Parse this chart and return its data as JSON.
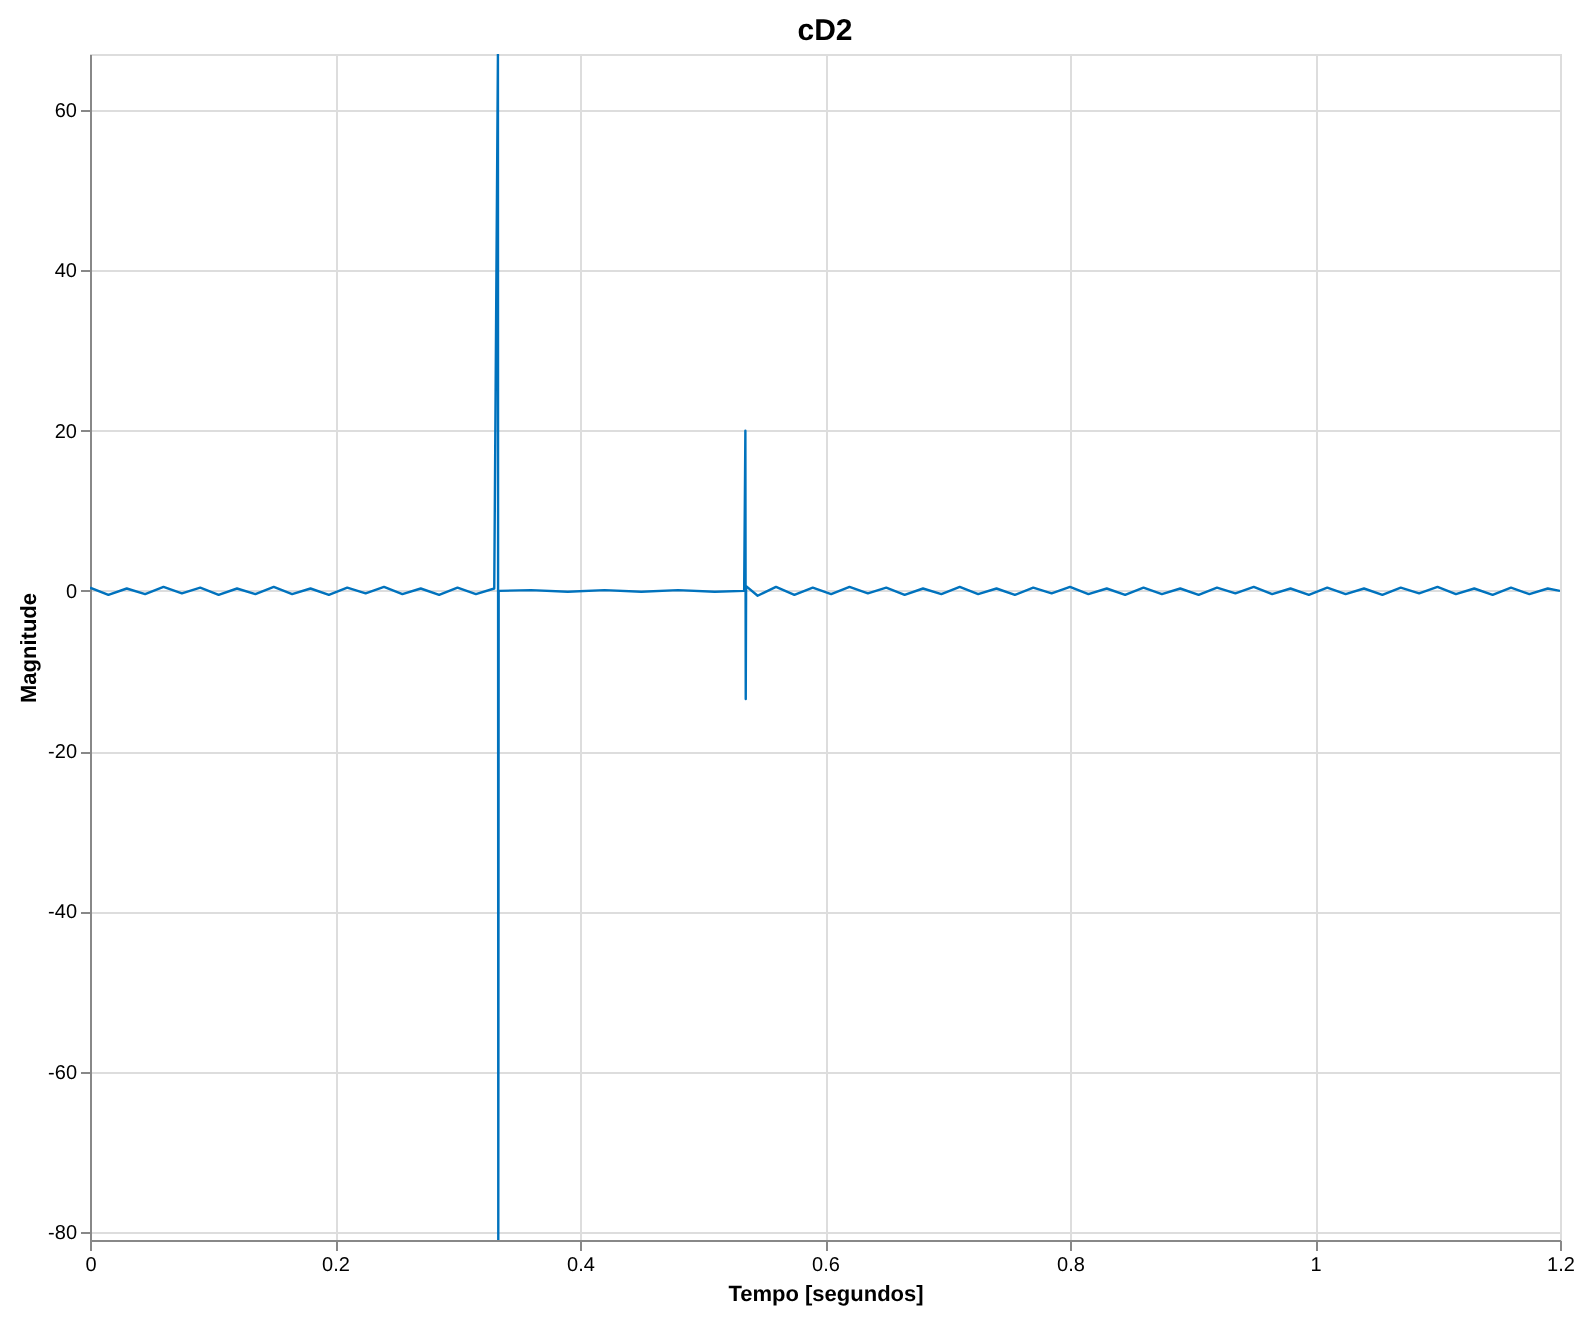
{
  "chart_data": {
    "type": "line",
    "title": "cD2",
    "xlabel": "Tempo [segundos]",
    "ylabel": "Magnitude",
    "xlim": [
      0,
      1.2
    ],
    "xticks": [
      0,
      0.2,
      0.4,
      0.6,
      0.8,
      1,
      1.2
    ],
    "ylim": [
      -81,
      67
    ],
    "yticks": [
      -80,
      -60,
      -40,
      -20,
      0,
      20,
      40,
      60
    ],
    "grid": true,
    "marker": "none",
    "line_style": "solid",
    "series": [
      {
        "color": "#0072bd",
        "x": [
          0,
          0.015,
          0.03,
          0.045,
          0.06,
          0.075,
          0.09,
          0.105,
          0.12,
          0.135,
          0.15,
          0.165,
          0.18,
          0.195,
          0.21,
          0.225,
          0.24,
          0.255,
          0.27,
          0.285,
          0.3,
          0.315,
          0.33,
          0.333,
          0.3333,
          0.3336,
          0.36,
          0.39,
          0.42,
          0.45,
          0.48,
          0.51,
          0.534,
          0.535,
          0.5353,
          0.5356,
          0.545,
          0.56,
          0.575,
          0.59,
          0.605,
          0.62,
          0.635,
          0.65,
          0.665,
          0.68,
          0.695,
          0.71,
          0.725,
          0.74,
          0.755,
          0.77,
          0.785,
          0.8,
          0.815,
          0.83,
          0.845,
          0.86,
          0.875,
          0.89,
          0.905,
          0.92,
          0.935,
          0.95,
          0.965,
          0.98,
          0.995,
          1.01,
          1.025,
          1.04,
          1.055,
          1.07,
          1.085,
          1.1,
          1.115,
          1.13,
          1.145,
          1.16,
          1.175,
          1.19,
          1.2
        ],
        "values": [
          0.4,
          -0.5,
          0.3,
          -0.4,
          0.5,
          -0.3,
          0.4,
          -0.5,
          0.3,
          -0.4,
          0.5,
          -0.4,
          0.3,
          -0.5,
          0.4,
          -0.3,
          0.5,
          -0.4,
          0.3,
          -0.5,
          0.4,
          -0.4,
          0.3,
          67,
          -81,
          0,
          0.1,
          -0.1,
          0.1,
          -0.1,
          0.1,
          -0.1,
          0,
          20,
          -13.5,
          0.6,
          -0.6,
          0.5,
          -0.5,
          0.4,
          -0.4,
          0.5,
          -0.3,
          0.4,
          -0.5,
          0.3,
          -0.4,
          0.5,
          -0.4,
          0.3,
          -0.5,
          0.4,
          -0.3,
          0.5,
          -0.4,
          0.3,
          -0.5,
          0.4,
          -0.4,
          0.3,
          -0.5,
          0.4,
          -0.3,
          0.5,
          -0.4,
          0.3,
          -0.5,
          0.4,
          -0.4,
          0.3,
          -0.5,
          0.4,
          -0.3,
          0.5,
          -0.4,
          0.3,
          -0.5,
          0.4,
          -0.4,
          0.3,
          0
        ]
      }
    ]
  }
}
